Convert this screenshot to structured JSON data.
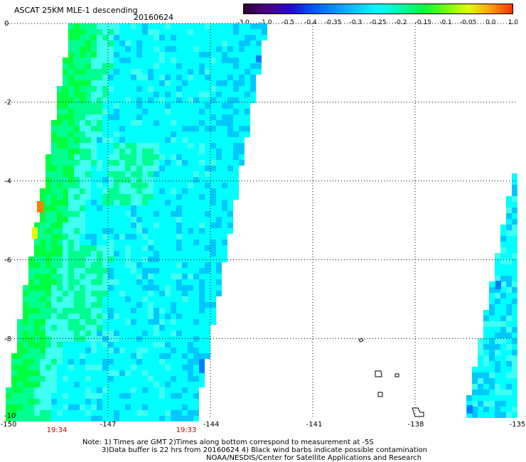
{
  "header": {
    "title": "ASCAT 25KM MLE-1 descending",
    "date": "20160624"
  },
  "colorbar": {
    "tick_labels": [
      "-3.0",
      "-1.0",
      "-0.5",
      "-0.4",
      "-0.35",
      "-0.3",
      "-0.25",
      "-0.2",
      "-0.15",
      "-0.1",
      "-0.05",
      "0.0",
      "1.0"
    ],
    "colors": [
      "#2a0033",
      "#4b0082",
      "#2a00d0",
      "#0050ff",
      "#0090ff",
      "#00c8ff",
      "#00ffff",
      "#00ffaa",
      "#00ff40",
      "#70ff00",
      "#e0ff00",
      "#ffa000",
      "#ff3000"
    ]
  },
  "map": {
    "lat_labels": [
      "0",
      "-2",
      "-4",
      "-6",
      "-8",
      "-10"
    ],
    "lon_labels": [
      "-150",
      "-147",
      "-144",
      "-141",
      "-138",
      "-135"
    ],
    "lat_range": [
      -10,
      0
    ],
    "lon_range": [
      -150,
      -135
    ],
    "times": [
      "19:34",
      "19:33"
    ],
    "colors": {
      "cyan": "#00ffff",
      "cyan_light": "#40fff0",
      "blue_light": "#00c8ff",
      "blue": "#0080ff",
      "green": "#00ff40",
      "green_light": "#00ff90",
      "yellow": "#e0ff00",
      "orange": "#ff8000"
    },
    "grid": true
  },
  "notes": {
    "line1": "Note: 1) Times are GMT 2)Times along bottom correspond to measurement at -5S",
    "line2": "3)Data buffer is 22 hrs from 20160624 4) Black wind barbs indicate possible contamination",
    "line3": "NOAA/NESDIS/Center for Satellite Applications and Research"
  }
}
